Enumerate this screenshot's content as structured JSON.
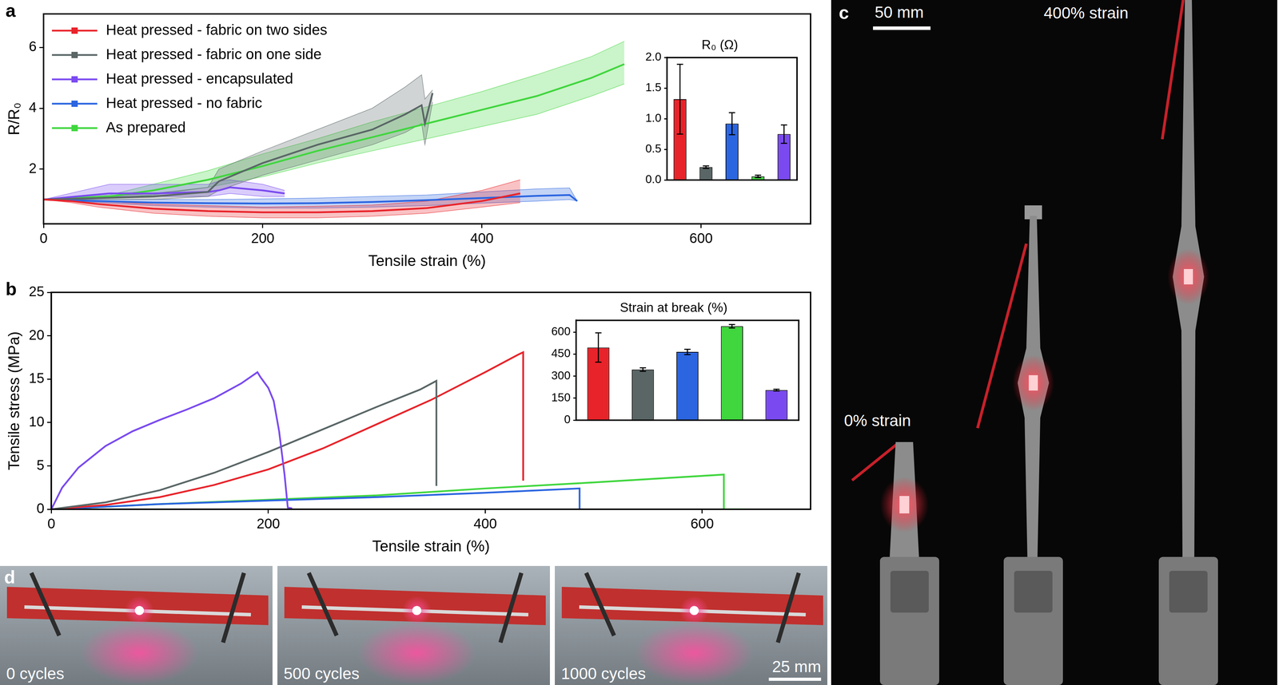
{
  "chart_data": [
    {
      "panel": "a",
      "type": "line",
      "x_label": "Tensile strain (%)",
      "y_label": "R/R₀",
      "xlim": [
        0,
        700
      ],
      "xticks": [
        0,
        200,
        400,
        600
      ],
      "ylim": [
        0.2,
        7.1
      ],
      "yticks": [
        2,
        4,
        6
      ],
      "legend": "top-left",
      "series": [
        {
          "name": "Heat pressed - fabric on two sides",
          "color": "#e8232a",
          "x": [
            0,
            25,
            50,
            100,
            150,
            200,
            250,
            300,
            350,
            400,
            435
          ],
          "values": [
            1.0,
            0.95,
            0.85,
            0.7,
            0.62,
            0.58,
            0.58,
            0.62,
            0.72,
            0.95,
            1.2
          ],
          "lower": [
            1.0,
            0.9,
            0.75,
            0.55,
            0.45,
            0.4,
            0.4,
            0.45,
            0.55,
            0.75,
            0.9
          ],
          "upper": [
            1.0,
            1.0,
            0.95,
            0.85,
            0.8,
            0.75,
            0.78,
            0.82,
            0.95,
            1.3,
            1.65
          ]
        },
        {
          "name": "Heat pressed - fabric on one side",
          "color": "#5a6666",
          "x": [
            0,
            50,
            100,
            150,
            160,
            200,
            250,
            300,
            330,
            345,
            348,
            355
          ],
          "values": [
            1.0,
            1.05,
            1.1,
            1.25,
            1.6,
            2.2,
            2.8,
            3.3,
            3.8,
            4.1,
            3.5,
            4.5
          ],
          "lower": [
            1.0,
            1.0,
            1.0,
            1.1,
            1.3,
            1.8,
            2.3,
            2.8,
            3.2,
            3.5,
            2.8,
            4.2
          ],
          "upper": [
            1.0,
            1.1,
            1.2,
            1.4,
            2.0,
            2.6,
            3.3,
            4.0,
            4.7,
            5.1,
            4.3,
            4.6
          ]
        },
        {
          "name": "Heat pressed - encapsulated",
          "color": "#7a4af0",
          "x": [
            0,
            60,
            100,
            150,
            160,
            170,
            200,
            220
          ],
          "values": [
            1.0,
            1.2,
            1.2,
            1.25,
            1.3,
            1.4,
            1.3,
            1.2
          ],
          "lower": [
            1.0,
            1.1,
            1.1,
            1.1,
            1.15,
            1.2,
            1.1,
            1.1
          ],
          "upper": [
            1.0,
            1.5,
            1.5,
            1.5,
            1.6,
            1.65,
            1.5,
            1.3
          ]
        },
        {
          "name": "Heat pressed - no fabric",
          "color": "#2b65e0",
          "x": [
            0,
            50,
            100,
            150,
            200,
            250,
            300,
            350,
            400,
            450,
            480,
            487
          ],
          "values": [
            1.0,
            0.95,
            0.9,
            0.88,
            0.87,
            0.88,
            0.92,
            0.98,
            1.05,
            1.12,
            1.15,
            0.95
          ],
          "lower": [
            1.0,
            0.9,
            0.8,
            0.75,
            0.72,
            0.72,
            0.75,
            0.8,
            0.88,
            0.95,
            1.0,
            0.95
          ],
          "upper": [
            1.0,
            1.0,
            1.0,
            1.0,
            1.02,
            1.05,
            1.1,
            1.15,
            1.25,
            1.35,
            1.38,
            0.95
          ]
        },
        {
          "name": "As prepared",
          "color": "#40d63e",
          "x": [
            0,
            60,
            100,
            150,
            200,
            250,
            300,
            350,
            400,
            450,
            500,
            530
          ],
          "values": [
            1.0,
            1.1,
            1.3,
            1.65,
            2.1,
            2.6,
            3.05,
            3.5,
            3.95,
            4.4,
            5.0,
            5.45
          ],
          "lower": [
            1.0,
            1.05,
            1.15,
            1.4,
            1.75,
            2.2,
            2.6,
            3.0,
            3.4,
            3.8,
            4.4,
            4.8
          ],
          "upper": [
            1.0,
            1.15,
            1.5,
            1.95,
            2.5,
            3.0,
            3.55,
            4.05,
            4.55,
            5.1,
            5.7,
            6.2
          ]
        }
      ]
    },
    {
      "panel": "a",
      "type": "bar",
      "title": "R₀ (Ω)",
      "categories": [
        null,
        null,
        null,
        null,
        null
      ],
      "values": [
        1.32,
        0.21,
        0.92,
        0.06,
        0.75
      ],
      "errors": [
        0.57,
        0.02,
        0.18,
        0.02,
        0.15
      ],
      "colors": [
        "#e8232a",
        "#5a6666",
        "#2b65e0",
        "#40d63e",
        "#7a4af0"
      ],
      "ylim": [
        0,
        2
      ],
      "yticks": [
        {
          "value": 0,
          "label": "0.0"
        },
        0.5,
        {
          "value": 1,
          "label": "1.0"
        },
        1.5,
        {
          "value": 2,
          "label": "2.0"
        }
      ],
      "tick_labels": "y"
    },
    {
      "panel": "b",
      "type": "line",
      "x_label": "Tensile strain (%)",
      "y_label": "Tensile stress (MPa)",
      "xlim": [
        0,
        700
      ],
      "xticks": [
        0,
        200,
        400,
        600
      ],
      "ylim": [
        0,
        25
      ],
      "yticks": [
        0,
        5,
        10,
        15,
        20,
        25
      ],
      "series": [
        {
          "color": "#7a4af0",
          "x": [
            0,
            10,
            25,
            50,
            75,
            100,
            125,
            150,
            175,
            190,
            193,
            200,
            205,
            210,
            215,
            218,
            222
          ],
          "values": [
            0,
            2.5,
            4.8,
            7.3,
            9,
            10.3,
            11.5,
            12.8,
            14.5,
            15.8,
            15.2,
            14,
            12.5,
            9,
            4,
            0.2,
            0.1
          ]
        },
        {
          "color": "#5a6666",
          "x": [
            0,
            50,
            100,
            150,
            200,
            250,
            300,
            340,
            355,
            355
          ],
          "values": [
            0,
            0.8,
            2.2,
            4.2,
            6.6,
            9.2,
            11.8,
            13.8,
            14.8,
            2.7
          ]
        },
        {
          "color": "#e8232a",
          "x": [
            0,
            50,
            100,
            150,
            200,
            250,
            300,
            350,
            400,
            430,
            435,
            435
          ],
          "values": [
            0,
            0.5,
            1.4,
            2.8,
            4.6,
            7,
            9.8,
            12.6,
            15.8,
            17.8,
            18.1,
            3.3
          ]
        },
        {
          "color": "#2b65e0",
          "x": [
            0,
            100,
            200,
            300,
            400,
            487,
            487,
            490
          ],
          "values": [
            0,
            0.6,
            1.0,
            1.4,
            1.9,
            2.4,
            0,
            0
          ]
        },
        {
          "color": "#40d63e",
          "x": [
            0,
            100,
            200,
            300,
            400,
            500,
            620,
            620,
            640
          ],
          "values": [
            0,
            0.6,
            1.1,
            1.6,
            2.4,
            3.1,
            4.0,
            0,
            0
          ]
        }
      ]
    },
    {
      "panel": "b",
      "type": "bar",
      "title": "Strain at break (%)",
      "categories": [
        null,
        null,
        null,
        null,
        null
      ],
      "values": [
        495,
        345,
        465,
        640,
        205
      ],
      "errors": [
        100,
        12,
        18,
        12,
        6
      ],
      "colors": [
        "#e8232a",
        "#5a6666",
        "#2b65e0",
        "#40d63e",
        "#7a4af0"
      ],
      "ylim": [
        0,
        680
      ],
      "yticks": [
        0,
        150,
        300,
        450,
        600
      ],
      "tick_labels": "y"
    }
  ],
  "photos": [
    {
      "panel": "c",
      "scale_bar": "50 mm",
      "labels": [
        "0% strain",
        "400% strain"
      ]
    },
    {
      "panel": "d",
      "scale_bar": "25 mm",
      "labels": [
        "0 cycles",
        "500 cycles",
        "1000 cycles"
      ]
    }
  ]
}
